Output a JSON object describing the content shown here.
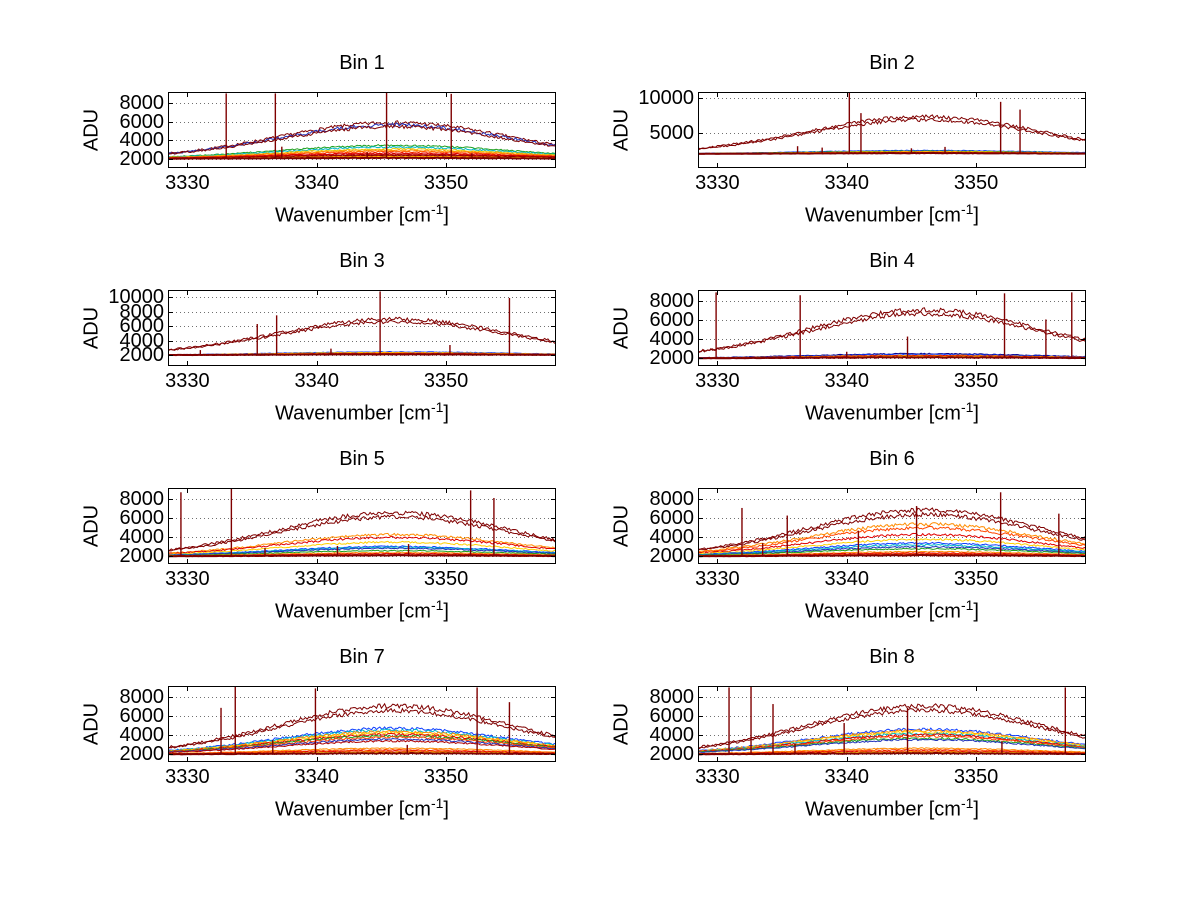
{
  "figure": {
    "background": "#ffffff"
  },
  "chart_data": {
    "type": "line",
    "layout": "8 subplots in 4 rows x 2 columns, MATLAB-style spectra",
    "grid": "horizontal dotted gridlines at y ticks",
    "axes_shared": {
      "ylabel": "ADU",
      "xlabel_prefix": "Wavenumber [cm",
      "xlabel_sup": "-1",
      "xlabel_suffix": "]",
      "xlim": [
        3328.5,
        3358.5
      ],
      "xticks": [
        3330,
        3340,
        3350
      ],
      "peak_center": 3346,
      "peak_sigma": 9,
      "spike_color": "#7f0000",
      "description": "Each panel shows many overlaid emission spectra (jet-colored) forming a broad hump over a ~2000 ADU baseline, with narrow spectral spike lines."
    },
    "plots": [
      {
        "title": "Bin 1",
        "ylim": [
          1000,
          9200
        ],
        "yticks": [
          2000,
          4000,
          6000,
          8000
        ],
        "baseline": 2000,
        "curves": [
          {
            "peak_adu": 5900,
            "color": "#7f0000"
          },
          {
            "peak_adu": 5650,
            "color": "#2233bb"
          },
          {
            "peak_adu": 5450,
            "color": "#7f0000"
          },
          {
            "peak_adu": 3450,
            "color": "#20a020"
          },
          {
            "peak_adu": 3250,
            "color": "#00b8c8"
          },
          {
            "peak_adu": 3050,
            "color": "#e8c800"
          },
          {
            "peak_adu": 2900,
            "color": "#ff8c00"
          },
          {
            "peak_adu": 2750,
            "color": "#ff5000"
          },
          {
            "peak_adu": 2600,
            "color": "#e00000"
          },
          {
            "peak_adu": 2480,
            "color": "#c00000"
          },
          {
            "peak_adu": 2380,
            "color": "#a00000"
          },
          {
            "peak_adu": 2300,
            "color": "#7f0000"
          },
          {
            "peak_adu": 2240,
            "color": "#ff8c00"
          },
          {
            "peak_adu": 2180,
            "color": "#ffd000"
          },
          {
            "peak_adu": 2130,
            "color": "#ff4500"
          },
          {
            "peak_adu": 2090,
            "color": "#7f0000",
            "lw": 2
          }
        ],
        "spikes": [
          {
            "x": 3333.0,
            "peak_adu": 9050
          },
          {
            "x": 3336.8,
            "peak_adu": 9050
          },
          {
            "x": 3345.4,
            "peak_adu": 9150
          },
          {
            "x": 3350.4,
            "peak_adu": 9000
          },
          {
            "x": 3337.3,
            "peak_adu": 3300
          },
          {
            "x": 3343.9,
            "peak_adu": 2700
          },
          {
            "x": 3352.0,
            "peak_adu": 2600
          }
        ]
      },
      {
        "title": "Bin 2",
        "ylim": [
          0,
          10800
        ],
        "yticks": [
          5000,
          10000
        ],
        "baseline": 2000,
        "curves": [
          {
            "peak_adu": 7300,
            "color": "#7f0000"
          },
          {
            "peak_adu": 6850,
            "color": "#7f0000"
          },
          {
            "peak_adu": 2500,
            "color": "#1040ff"
          },
          {
            "peak_adu": 2400,
            "color": "#20a020"
          },
          {
            "peak_adu": 2330,
            "color": "#ffd000"
          },
          {
            "peak_adu": 2270,
            "color": "#ff8c00"
          },
          {
            "peak_adu": 2210,
            "color": "#ff4500"
          },
          {
            "peak_adu": 2160,
            "color": "#e00000"
          },
          {
            "peak_adu": 2110,
            "color": "#7f0000",
            "lw": 2
          }
        ],
        "spikes": [
          {
            "x": 3340.2,
            "peak_adu": 10700
          },
          {
            "x": 3341.1,
            "peak_adu": 7800
          },
          {
            "x": 3351.9,
            "peak_adu": 9400
          },
          {
            "x": 3353.4,
            "peak_adu": 8300
          },
          {
            "x": 3336.2,
            "peak_adu": 3100
          },
          {
            "x": 3338.1,
            "peak_adu": 2900
          },
          {
            "x": 3347.6,
            "peak_adu": 3000
          },
          {
            "x": 3345.0,
            "peak_adu": 2800
          }
        ]
      },
      {
        "title": "Bin 3",
        "ylim": [
          500,
          11000
        ],
        "yticks": [
          2000,
          4000,
          6000,
          8000,
          10000
        ],
        "baseline": 2000,
        "curves": [
          {
            "peak_adu": 7000,
            "color": "#7f0000"
          },
          {
            "peak_adu": 6600,
            "color": "#7f0000"
          },
          {
            "peak_adu": 2450,
            "color": "#1040ff"
          },
          {
            "peak_adu": 2360,
            "color": "#ffd000"
          },
          {
            "peak_adu": 2290,
            "color": "#ff8c00"
          },
          {
            "peak_adu": 2230,
            "color": "#e00000"
          },
          {
            "peak_adu": 2170,
            "color": "#ff4500"
          },
          {
            "peak_adu": 2110,
            "color": "#7f0000",
            "lw": 2
          }
        ],
        "spikes": [
          {
            "x": 3335.4,
            "peak_adu": 6300
          },
          {
            "x": 3336.9,
            "peak_adu": 7500
          },
          {
            "x": 3344.9,
            "peak_adu": 10800
          },
          {
            "x": 3354.9,
            "peak_adu": 9900
          },
          {
            "x": 3341.1,
            "peak_adu": 2900
          },
          {
            "x": 3350.3,
            "peak_adu": 3400
          },
          {
            "x": 3331.0,
            "peak_adu": 2700
          }
        ]
      },
      {
        "title": "Bin 4",
        "ylim": [
          1200,
          9200
        ],
        "yticks": [
          2000,
          4000,
          6000,
          8000
        ],
        "baseline": 2000,
        "curves": [
          {
            "peak_adu": 7100,
            "color": "#7f0000"
          },
          {
            "peak_adu": 6700,
            "color": "#7f0000"
          },
          {
            "peak_adu": 2500,
            "color": "#00008f"
          },
          {
            "peak_adu": 2400,
            "color": "#1040ff"
          },
          {
            "peak_adu": 2330,
            "color": "#ff8c00"
          },
          {
            "peak_adu": 2270,
            "color": "#e00000"
          },
          {
            "peak_adu": 2210,
            "color": "#ffd000"
          },
          {
            "peak_adu": 2160,
            "color": "#ff4500"
          },
          {
            "peak_adu": 2110,
            "color": "#7f0000",
            "lw": 2
          }
        ],
        "spikes": [
          {
            "x": 3329.9,
            "peak_adu": 8950
          },
          {
            "x": 3336.4,
            "peak_adu": 8650
          },
          {
            "x": 3344.7,
            "peak_adu": 4300
          },
          {
            "x": 3352.2,
            "peak_adu": 8850
          },
          {
            "x": 3355.4,
            "peak_adu": 6100
          },
          {
            "x": 3357.4,
            "peak_adu": 8950
          },
          {
            "x": 3340.0,
            "peak_adu": 2700
          }
        ]
      },
      {
        "title": "Bin 5",
        "ylim": [
          1200,
          9200
        ],
        "yticks": [
          2000,
          4000,
          6000,
          8000
        ],
        "baseline": 2000,
        "curves": [
          {
            "peak_adu": 6600,
            "color": "#7f0000"
          },
          {
            "peak_adu": 6150,
            "color": "#7f0000"
          },
          {
            "peak_adu": 4300,
            "color": "#ff8c00"
          },
          {
            "peak_adu": 4000,
            "color": "#e00000"
          },
          {
            "peak_adu": 3500,
            "color": "#ffd000"
          },
          {
            "peak_adu": 3050,
            "color": "#1040ff"
          },
          {
            "peak_adu": 2950,
            "color": "#00b8c8"
          },
          {
            "peak_adu": 2850,
            "color": "#2233bb"
          },
          {
            "peak_adu": 2600,
            "color": "#20a020"
          },
          {
            "peak_adu": 2400,
            "color": "#ff8c00"
          },
          {
            "peak_adu": 2280,
            "color": "#e00000"
          },
          {
            "peak_adu": 2180,
            "color": "#ff4500"
          },
          {
            "peak_adu": 2110,
            "color": "#7f0000",
            "lw": 2
          }
        ],
        "spikes": [
          {
            "x": 3329.5,
            "peak_adu": 8750
          },
          {
            "x": 3333.4,
            "peak_adu": 9100
          },
          {
            "x": 3351.9,
            "peak_adu": 8950
          },
          {
            "x": 3353.7,
            "peak_adu": 8150
          },
          {
            "x": 3341.6,
            "peak_adu": 3100
          },
          {
            "x": 3347.1,
            "peak_adu": 3300
          },
          {
            "x": 3336.0,
            "peak_adu": 2900
          }
        ]
      },
      {
        "title": "Bin 6",
        "ylim": [
          1200,
          9200
        ],
        "yticks": [
          2000,
          4000,
          6000,
          8000
        ],
        "baseline": 2000,
        "curves": [
          {
            "peak_adu": 6900,
            "color": "#7f0000"
          },
          {
            "peak_adu": 6400,
            "color": "#7f0000"
          },
          {
            "peak_adu": 5400,
            "color": "#ff8c00"
          },
          {
            "peak_adu": 5000,
            "color": "#ff4500"
          },
          {
            "peak_adu": 4300,
            "color": "#e00000"
          },
          {
            "peak_adu": 3800,
            "color": "#ffd000"
          },
          {
            "peak_adu": 3400,
            "color": "#1040ff"
          },
          {
            "peak_adu": 3200,
            "color": "#00b8c8"
          },
          {
            "peak_adu": 3000,
            "color": "#2233bb"
          },
          {
            "peak_adu": 2800,
            "color": "#20a020"
          },
          {
            "peak_adu": 2500,
            "color": "#ff8c00"
          },
          {
            "peak_adu": 2350,
            "color": "#e00000"
          },
          {
            "peak_adu": 2250,
            "color": "#ff4500"
          },
          {
            "peak_adu": 2120,
            "color": "#7f0000",
            "lw": 2
          }
        ],
        "spikes": [
          {
            "x": 3331.9,
            "peak_adu": 7100
          },
          {
            "x": 3335.4,
            "peak_adu": 6300
          },
          {
            "x": 3340.9,
            "peak_adu": 4700
          },
          {
            "x": 3345.4,
            "peak_adu": 7300
          },
          {
            "x": 3351.9,
            "peak_adu": 8750
          },
          {
            "x": 3356.4,
            "peak_adu": 6500
          },
          {
            "x": 3333.5,
            "peak_adu": 3400
          }
        ]
      },
      {
        "title": "Bin 7",
        "ylim": [
          1200,
          9200
        ],
        "yticks": [
          2000,
          4000,
          6000,
          8000
        ],
        "baseline": 2000,
        "curves": [
          {
            "peak_adu": 7100,
            "color": "#7f0000"
          },
          {
            "peak_adu": 6600,
            "color": "#7f0000"
          },
          {
            "peak_adu": 4750,
            "color": "#1040ff"
          },
          {
            "peak_adu": 4550,
            "color": "#00b8c8"
          },
          {
            "peak_adu": 4400,
            "color": "#ff8c00"
          },
          {
            "peak_adu": 4250,
            "color": "#ffd000"
          },
          {
            "peak_adu": 4100,
            "color": "#e00000"
          },
          {
            "peak_adu": 3950,
            "color": "#20a020"
          },
          {
            "peak_adu": 3800,
            "color": "#ff4500"
          },
          {
            "peak_adu": 3600,
            "color": "#2233bb"
          },
          {
            "peak_adu": 3400,
            "color": "#b00000"
          },
          {
            "peak_adu": 2650,
            "color": "#ff8c00"
          },
          {
            "peak_adu": 2480,
            "color": "#ff4500"
          },
          {
            "peak_adu": 2350,
            "color": "#e00000"
          },
          {
            "peak_adu": 2240,
            "color": "#ffd000"
          },
          {
            "peak_adu": 2120,
            "color": "#7f0000",
            "lw": 2
          }
        ],
        "spikes": [
          {
            "x": 3332.6,
            "peak_adu": 6900
          },
          {
            "x": 3333.7,
            "peak_adu": 9100
          },
          {
            "x": 3339.9,
            "peak_adu": 8950
          },
          {
            "x": 3352.4,
            "peak_adu": 9050
          },
          {
            "x": 3354.9,
            "peak_adu": 7500
          },
          {
            "x": 3336.6,
            "peak_adu": 3500
          },
          {
            "x": 3347.0,
            "peak_adu": 3000
          }
        ]
      },
      {
        "title": "Bin 8",
        "ylim": [
          1200,
          9200
        ],
        "yticks": [
          2000,
          4000,
          6000,
          8000
        ],
        "baseline": 2000,
        "curves": [
          {
            "peak_adu": 7100,
            "color": "#7f0000"
          },
          {
            "peak_adu": 6650,
            "color": "#7f0000"
          },
          {
            "peak_adu": 4650,
            "color": "#1040ff"
          },
          {
            "peak_adu": 4500,
            "color": "#ff8c00"
          },
          {
            "peak_adu": 4350,
            "color": "#ffd000"
          },
          {
            "peak_adu": 4200,
            "color": "#00b8c8"
          },
          {
            "peak_adu": 4050,
            "color": "#e00000"
          },
          {
            "peak_adu": 3900,
            "color": "#ff4500"
          },
          {
            "peak_adu": 3700,
            "color": "#20a020"
          },
          {
            "peak_adu": 3550,
            "color": "#2233bb"
          },
          {
            "peak_adu": 2650,
            "color": "#ff8c00"
          },
          {
            "peak_adu": 2480,
            "color": "#ff4500"
          },
          {
            "peak_adu": 2350,
            "color": "#e00000"
          },
          {
            "peak_adu": 2240,
            "color": "#ffd000"
          },
          {
            "peak_adu": 2120,
            "color": "#7f0000",
            "lw": 2
          }
        ],
        "spikes": [
          {
            "x": 3330.9,
            "peak_adu": 9050
          },
          {
            "x": 3332.6,
            "peak_adu": 9100
          },
          {
            "x": 3334.3,
            "peak_adu": 7300
          },
          {
            "x": 3339.8,
            "peak_adu": 5300
          },
          {
            "x": 3344.7,
            "peak_adu": 6900
          },
          {
            "x": 3356.9,
            "peak_adu": 9050
          },
          {
            "x": 3352.0,
            "peak_adu": 3400
          },
          {
            "x": 3336.0,
            "peak_adu": 3100
          }
        ]
      }
    ]
  }
}
